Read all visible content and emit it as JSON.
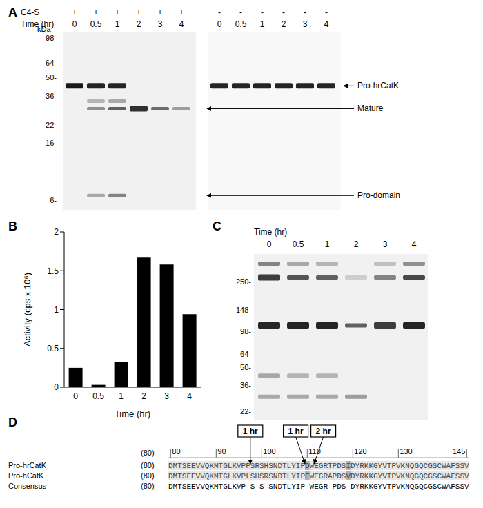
{
  "panel_labels": [
    "A",
    "B",
    "C",
    "D"
  ],
  "gel_A": {
    "header_rows": [
      {
        "label": "C4-S",
        "values": [
          "+",
          "+",
          "+",
          "+",
          "+",
          "+",
          "-",
          "-",
          "-",
          "-",
          "-",
          "-"
        ]
      },
      {
        "label": "Time (hr)",
        "values": [
          "0",
          "0.5",
          "1",
          "2",
          "3",
          "4",
          "0",
          "0.5",
          "1",
          "2",
          "3",
          "4"
        ]
      }
    ],
    "marker_unit": "kDa",
    "markers": [
      98,
      64,
      50,
      36,
      22,
      16,
      6
    ],
    "lanes": [
      [
        {
          "kDa": 43,
          "intensity": 0.9
        }
      ],
      [
        {
          "kDa": 43,
          "intensity": 0.85
        },
        {
          "kDa": 33,
          "intensity": 0.25
        },
        {
          "kDa": 29,
          "intensity": 0.4
        },
        {
          "kDa": 6.5,
          "intensity": 0.3
        }
      ],
      [
        {
          "kDa": 43,
          "intensity": 0.85
        },
        {
          "kDa": 33,
          "intensity": 0.3
        },
        {
          "kDa": 29,
          "intensity": 0.6
        },
        {
          "kDa": 6.5,
          "intensity": 0.45
        }
      ],
      [
        {
          "kDa": 29,
          "intensity": 0.8
        }
      ],
      [
        {
          "kDa": 29,
          "intensity": 0.55
        }
      ],
      [
        {
          "kDa": 29,
          "intensity": 0.35
        }
      ],
      [
        {
          "kDa": 43,
          "intensity": 0.85
        }
      ],
      [
        {
          "kDa": 43,
          "intensity": 0.85
        }
      ],
      [
        {
          "kDa": 43,
          "intensity": 0.85
        }
      ],
      [
        {
          "kDa": 43,
          "intensity": 0.85
        }
      ],
      [
        {
          "kDa": 43,
          "intensity": 0.85
        }
      ],
      [
        {
          "kDa": 43,
          "intensity": 0.85
        }
      ]
    ],
    "band_labels": [
      {
        "text": "Pro-hrCatK",
        "kDa": 43
      },
      {
        "text": "Mature",
        "kDa": 29
      },
      {
        "text": "Pro-domain",
        "kDa": 6.5
      }
    ]
  },
  "gel_C": {
    "header": "Time (hr)",
    "lane_labels": [
      "0",
      "0.5",
      "1",
      "2",
      "3",
      "4"
    ],
    "markers": [
      250,
      148,
      98,
      64,
      50,
      36,
      22
    ],
    "lanes": [
      [
        {
          "kDa": 350,
          "intensity": 0.45
        },
        {
          "kDa": 270,
          "intensity": 0.75
        },
        {
          "kDa": 110,
          "intensity": 0.85
        },
        {
          "kDa": 43,
          "intensity": 0.3
        },
        {
          "kDa": 29,
          "intensity": 0.3
        }
      ],
      [
        {
          "kDa": 350,
          "intensity": 0.3
        },
        {
          "kDa": 270,
          "intensity": 0.65
        },
        {
          "kDa": 110,
          "intensity": 0.85
        },
        {
          "kDa": 43,
          "intensity": 0.25
        },
        {
          "kDa": 29,
          "intensity": 0.3
        }
      ],
      [
        {
          "kDa": 350,
          "intensity": 0.25
        },
        {
          "kDa": 270,
          "intensity": 0.6
        },
        {
          "kDa": 110,
          "intensity": 0.85
        },
        {
          "kDa": 43,
          "intensity": 0.25
        },
        {
          "kDa": 29,
          "intensity": 0.3
        }
      ],
      [
        {
          "kDa": 270,
          "intensity": 0.15
        },
        {
          "kDa": 110,
          "intensity": 0.6
        },
        {
          "kDa": 29,
          "intensity": 0.35
        }
      ],
      [
        {
          "kDa": 350,
          "intensity": 0.2
        },
        {
          "kDa": 270,
          "intensity": 0.45
        },
        {
          "kDa": 110,
          "intensity": 0.75
        }
      ],
      [
        {
          "kDa": 350,
          "intensity": 0.4
        },
        {
          "kDa": 270,
          "intensity": 0.7
        },
        {
          "kDa": 110,
          "intensity": 0.85
        }
      ]
    ]
  },
  "alignment": {
    "ruler_start": "(80)",
    "ruler_ticks": [
      80,
      90,
      100,
      110,
      120,
      130,
      145
    ],
    "first_residue": 80,
    "rows": [
      {
        "name": "Pro-hrCatK",
        "start": "(80)",
        "sequence": "DMTSEEVVQKMTGLKVPPSRSHSNDTLYIPDWEGRTPDSIDYRKKGYVTPVKNQGQCGSCWAFSSV"
      },
      {
        "name": "Pro-hCatK",
        "start": "(80)",
        "sequence": "DMTSEEVVQKMTGLKVPLSHSRSNDTLYIPEWEGRAPDSVDYRKKGYVTPVKNQGQCGSCWAFSSV"
      },
      {
        "name": "Consensus",
        "start": "(80)",
        "sequence": "DMTSEEVVQKMTGLKVP S S SNDTLYIP WEGR PDS DYRKKGYVTPVKNQGQCGSCWAFSSV"
      }
    ],
    "highlight_residues": [
      110,
      119
    ],
    "cleavage_sites": [
      {
        "label": "1 hr",
        "after_residue": 97
      },
      {
        "label": "1 hr",
        "after_residue": 109
      },
      {
        "label": "2 hr",
        "after_residue": 111
      }
    ]
  },
  "chart_data": {
    "type": "bar",
    "x_label": "Time (hr)",
    "y_label": "Activity (cps x 10⁶)",
    "categories": [
      "0",
      "0.5",
      "1",
      "2",
      "3",
      "4"
    ],
    "values": [
      0.25,
      0.03,
      0.32,
      1.67,
      1.58,
      0.94
    ],
    "color": "#000000",
    "ylim": [
      0,
      2
    ],
    "yticks": [
      0,
      0.5,
      1,
      1.5,
      2
    ]
  }
}
